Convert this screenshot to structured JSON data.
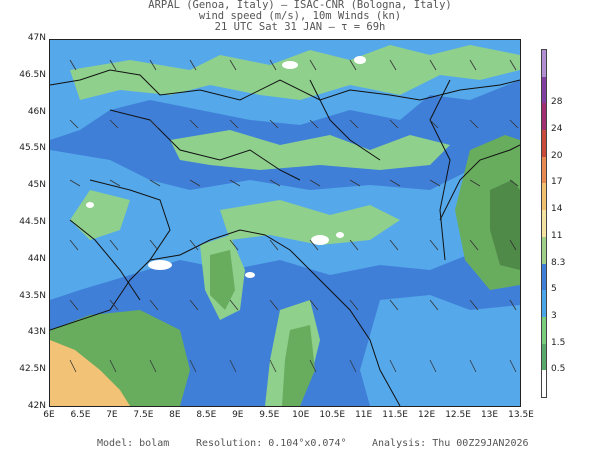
{
  "header": {
    "line1": "ARPAL (Genoa, Italy)  —  ISAC-CNR (Bologna, Italy)",
    "line2": "wind speed (m/s), 10m Winds (kn)",
    "line3": "21 UTC Sat 31 JAN  —  τ = 69h"
  },
  "axes": {
    "lat_labels": [
      "47N",
      "46.5N",
      "46N",
      "45.5N",
      "45N",
      "44.5N",
      "44N",
      "43.5N",
      "43N",
      "42.5N",
      "42N"
    ],
    "lon_labels": [
      "6E",
      "6.5E",
      "7E",
      "7.5E",
      "8E",
      "8.5E",
      "9E",
      "9.5E",
      "10E",
      "10.5E",
      "11E",
      "11.5E",
      "12E",
      "12.5E",
      "13E",
      "13.5E"
    ],
    "lat_range": [
      42,
      47
    ],
    "lon_range": [
      6,
      13.5
    ]
  },
  "colorbar": {
    "labels": [
      "0.5",
      "1.5",
      "3",
      "5",
      "8.3",
      "11",
      "14",
      "17",
      "20",
      "24",
      "28"
    ],
    "colors": [
      "#ffffff",
      "#5aa86a",
      "#7ccc7e",
      "#4aa6e8",
      "#3f7fd8",
      "#9ed08a",
      "#f5e1a0",
      "#f0c070",
      "#e88a50",
      "#c84a3a",
      "#a03070",
      "#8040a0",
      "#b090d0"
    ]
  },
  "palette": {
    "blue": "#3f7fd8",
    "light_blue": "#55a8ea",
    "light_green": "#8fd08c",
    "green": "#68ac5e",
    "dark_green": "#4f8a48",
    "orange": "#f2c276"
  },
  "footer": {
    "model": "Model: bolam",
    "resolution": "Resolution: 0.104°x0.074°",
    "analysis": "Analysis: Thu 00Z29JAN2026"
  }
}
